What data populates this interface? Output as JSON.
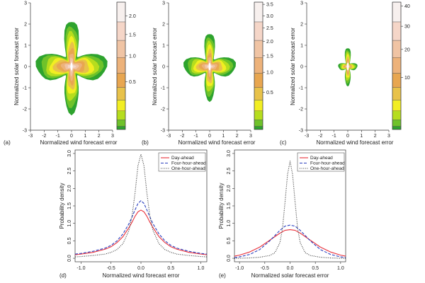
{
  "chart_data": [
    {
      "panel_label": "(a)",
      "type": "heatmap",
      "xlabel": "Normalized wind forecast error",
      "ylabel": "Normalized solar forecast error",
      "xlim": [
        -3,
        3
      ],
      "ylim": [
        -3,
        3
      ],
      "x_ticks": [
        "-3",
        "-2",
        "-1",
        "0",
        "1",
        "2",
        "3"
      ],
      "y_ticks": [
        "-3",
        "-2",
        "-1",
        "0",
        "1",
        "2",
        "3"
      ],
      "colorbar_ticks": [
        "0.5",
        "1.0",
        "1.5",
        "2.0"
      ],
      "colorbar_range": [
        0,
        2.4
      ],
      "peak_density": 2.3,
      "spread": {
        "x_sigma": 0.55,
        "y_sigma": 0.55,
        "x_extent": 2.6,
        "y_extent": 2.2
      }
    },
    {
      "panel_label": "(b)",
      "type": "heatmap",
      "xlabel": "Normalized wind forecast error",
      "ylabel": "Normalized solar forecast error",
      "xlim": [
        -3,
        3
      ],
      "ylim": [
        -3,
        3
      ],
      "x_ticks": [
        "-3",
        "-2",
        "-1",
        "0",
        "1",
        "2",
        "3"
      ],
      "y_ticks": [
        "-3",
        "-2",
        "-1",
        "0",
        "1",
        "2",
        "3"
      ],
      "colorbar_ticks": [
        "0.5",
        "1.0",
        "1.5",
        "2.0",
        "2.5",
        "3.0",
        "3.5"
      ],
      "colorbar_range": [
        0,
        3.6
      ],
      "peak_density": 3.4,
      "spread": {
        "x_sigma": 0.45,
        "y_sigma": 0.45,
        "x_extent": 1.9,
        "y_extent": 1.6
      }
    },
    {
      "panel_label": "(c)",
      "type": "heatmap",
      "xlabel": "Normalized wind forecast error",
      "ylabel": "Normalized solar forecast error",
      "xlim": [
        -3,
        3
      ],
      "ylim": [
        -3,
        3
      ],
      "x_ticks": [
        "-3",
        "-2",
        "-1",
        "0",
        "1",
        "2",
        "3"
      ],
      "y_ticks": [
        "-3",
        "-2",
        "-1",
        "0",
        "1",
        "2",
        "3"
      ],
      "colorbar_ticks": [
        "10",
        "20",
        "30",
        "40"
      ],
      "colorbar_range": [
        0,
        42
      ],
      "peak_density": 40,
      "spread": {
        "x_sigma": 0.18,
        "y_sigma": 0.2,
        "x_extent": 0.7,
        "y_extent": 0.9
      }
    },
    {
      "panel_label": "(d)",
      "type": "line",
      "xlabel": "Normalized wind forecast error",
      "ylabel": "Probability density",
      "xlim": [
        -1.1,
        1.1
      ],
      "ylim": [
        -0.1,
        3.1
      ],
      "x_ticks": [
        -1.0,
        -0.5,
        0.0,
        0.5,
        1.0
      ],
      "x_tick_labels": [
        "-1.0",
        "-0.5",
        "0.0",
        "0.5",
        "1.0"
      ],
      "y_ticks": [
        0.0,
        0.5,
        1.0,
        1.5,
        2.0,
        2.5,
        3.0
      ],
      "y_tick_labels": [
        "0.0",
        "0.5",
        "1.0",
        "1.5",
        "2.0",
        "2.5",
        "3.0"
      ],
      "series": [
        {
          "name": "Day-ahead",
          "color": "#e8303a",
          "dash": "solid",
          "x": [
            -1.1,
            -1.0,
            -0.8,
            -0.6,
            -0.5,
            -0.4,
            -0.3,
            -0.2,
            -0.15,
            -0.1,
            -0.05,
            0.0,
            0.05,
            0.1,
            0.15,
            0.2,
            0.3,
            0.4,
            0.5,
            0.6,
            0.8,
            1.0,
            1.1
          ],
          "y": [
            0.1,
            0.12,
            0.17,
            0.26,
            0.33,
            0.45,
            0.62,
            0.88,
            1.03,
            1.2,
            1.33,
            1.38,
            1.33,
            1.2,
            1.03,
            0.88,
            0.62,
            0.45,
            0.33,
            0.26,
            0.17,
            0.12,
            0.1
          ]
        },
        {
          "name": "Four-hour-ahead",
          "color": "#2a3fbf",
          "dash": "dashed",
          "x": [
            -1.1,
            -1.0,
            -0.8,
            -0.6,
            -0.5,
            -0.4,
            -0.3,
            -0.2,
            -0.15,
            -0.1,
            -0.05,
            0.0,
            0.05,
            0.1,
            0.15,
            0.2,
            0.3,
            0.4,
            0.5,
            0.6,
            0.8,
            1.0,
            1.1
          ],
          "y": [
            0.12,
            0.14,
            0.2,
            0.29,
            0.37,
            0.5,
            0.7,
            0.99,
            1.18,
            1.38,
            1.57,
            1.65,
            1.57,
            1.38,
            1.18,
            0.99,
            0.7,
            0.5,
            0.37,
            0.29,
            0.2,
            0.14,
            0.12
          ]
        },
        {
          "name": "One-hour-ahead",
          "color": "#333333",
          "dash": "dotted",
          "x": [
            -1.1,
            -1.0,
            -0.8,
            -0.6,
            -0.5,
            -0.4,
            -0.3,
            -0.2,
            -0.15,
            -0.1,
            -0.05,
            0.0,
            0.05,
            0.1,
            0.15,
            0.2,
            0.3,
            0.4,
            0.5,
            0.6,
            0.8,
            1.0,
            1.1
          ],
          "y": [
            0.04,
            0.05,
            0.08,
            0.12,
            0.17,
            0.25,
            0.42,
            0.8,
            1.2,
            1.85,
            2.65,
            2.98,
            2.65,
            1.85,
            1.2,
            0.8,
            0.42,
            0.25,
            0.17,
            0.12,
            0.08,
            0.05,
            0.04
          ]
        }
      ],
      "legend": "top-right"
    },
    {
      "panel_label": "(e)",
      "type": "line",
      "xlabel": "Normalized solar forecast error",
      "ylabel": "Probability density",
      "xlim": [
        -1.1,
        1.1
      ],
      "ylim": [
        -0.1,
        3.1
      ],
      "x_ticks": [
        -1.0,
        -0.5,
        0.0,
        0.5,
        1.0
      ],
      "x_tick_labels": [
        "-1.0",
        "-0.5",
        "0.0",
        "0.5",
        "1.0"
      ],
      "y_ticks": [
        0.0,
        0.5,
        1.0,
        1.5,
        2.0,
        2.5,
        3.0
      ],
      "y_tick_labels": [
        "0.0",
        "0.5",
        "1.0",
        "1.5",
        "2.0",
        "2.5",
        "3.0"
      ],
      "series": [
        {
          "name": "Day-ahead",
          "color": "#e8303a",
          "dash": "solid",
          "x": [
            -1.1,
            -1.0,
            -0.8,
            -0.6,
            -0.4,
            -0.2,
            -0.1,
            0.0,
            0.1,
            0.2,
            0.4,
            0.6,
            0.8,
            1.0,
            1.1
          ],
          "y": [
            0.06,
            0.09,
            0.18,
            0.32,
            0.52,
            0.72,
            0.8,
            0.82,
            0.8,
            0.72,
            0.52,
            0.32,
            0.18,
            0.09,
            0.06
          ]
        },
        {
          "name": "Four-hour-ahead",
          "color": "#2a3fbf",
          "dash": "dashed",
          "x": [
            -1.1,
            -1.0,
            -0.8,
            -0.6,
            -0.4,
            -0.2,
            -0.1,
            0.0,
            0.1,
            0.2,
            0.4,
            0.6,
            0.8,
            1.0,
            1.1
          ],
          "y": [
            0.02,
            0.04,
            0.11,
            0.25,
            0.5,
            0.8,
            0.92,
            0.95,
            0.92,
            0.8,
            0.5,
            0.25,
            0.11,
            0.04,
            0.02
          ]
        },
        {
          "name": "One-hour-ahead",
          "color": "#333333",
          "dash": "dotted",
          "x": [
            -1.1,
            -1.0,
            -0.8,
            -0.6,
            -0.4,
            -0.3,
            -0.2,
            -0.15,
            -0.1,
            -0.05,
            0.0,
            0.05,
            0.1,
            0.15,
            0.2,
            0.3,
            0.4,
            0.6,
            0.8,
            1.0,
            1.1
          ],
          "y": [
            0.0,
            0.0,
            0.01,
            0.03,
            0.08,
            0.16,
            0.45,
            0.85,
            1.6,
            2.4,
            2.78,
            2.4,
            1.6,
            0.85,
            0.45,
            0.16,
            0.08,
            0.03,
            0.01,
            0.0,
            0.0
          ]
        }
      ],
      "legend": "top-right"
    }
  ],
  "colors": {
    "heat_scale": [
      "#2ea32e",
      "#6fc22a",
      "#b6dd1e",
      "#f2ee22",
      "#e8c24a",
      "#e8a650",
      "#edb27a",
      "#f0c4a4",
      "#f5d6c8",
      "#f7f0ee"
    ]
  }
}
